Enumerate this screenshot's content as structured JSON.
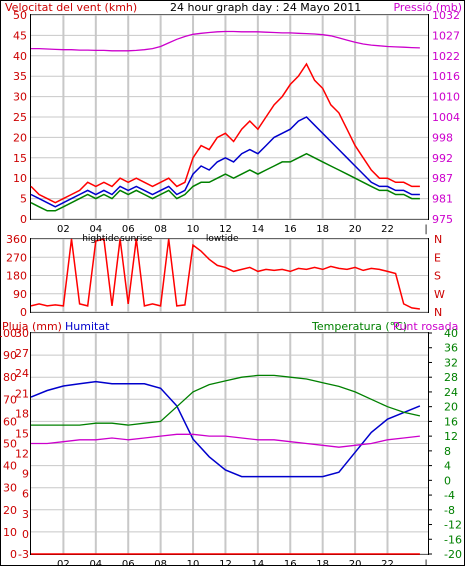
{
  "header": {
    "wind_label": "Velocitat del vent (kmh)",
    "title": "24 hour graph day : 24 Mayo 2011",
    "pressure_label": "Pressió (mb)"
  },
  "mid_header": {
    "rain_label": "Pluja (mm)",
    "humidity_label": "Humitat",
    "temp_label": "Temperatura (°C)",
    "dew_label": "Punt rosada"
  },
  "colors": {
    "wind_gust": "#ff0000",
    "wind_avg": "#008000",
    "wind_mid": "#0000cc",
    "pressure": "#cc00cc",
    "direction": "#ff0000",
    "rain": "#ff0000",
    "humidity": "#0000cc",
    "temperature": "#008000",
    "dew_point": "#cc00cc",
    "axis_left": "#cc0000",
    "axis_right_pressure": "#cc00cc",
    "axis_right_temp": "#008000",
    "grid": "#c8c8c8",
    "frame": "#000000"
  },
  "x_axis": {
    "hour_ticks": [
      "02",
      "04",
      "06",
      "08",
      "10",
      "12",
      "14",
      "16",
      "18",
      "20",
      "22",
      "|"
    ],
    "hour_values": [
      2,
      4,
      6,
      8,
      10,
      12,
      14,
      16,
      18,
      20,
      22,
      24
    ],
    "annotations": [
      {
        "text": "hightide",
        "hour": 4.3
      },
      {
        "text": "sunrise",
        "hour": 6.5
      },
      {
        "text": "lowtide",
        "hour": 11.8
      }
    ],
    "range": [
      0,
      24.5
    ]
  },
  "chart_data": [
    {
      "type": "line",
      "title": "Velocitat del vent (kmh) / Pressió (mb)",
      "xlabel": "",
      "ylabel": "Velocitat del vent (kmh)",
      "ylim": [
        0,
        50
      ],
      "y_ticks": [
        "0",
        "5",
        "10",
        "15",
        "20",
        "25",
        "30",
        "35",
        "40",
        "45",
        "50"
      ],
      "y2label": "Pressió (mb)",
      "y2lim": [
        975,
        1032
      ],
      "y2_ticks": [
        "975",
        "981",
        "987",
        "992",
        "998",
        "1004",
        "1010",
        "1016",
        "1022",
        "1027",
        "1032"
      ],
      "x_hours": [
        0,
        0.5,
        1,
        1.5,
        2,
        2.5,
        3,
        3.5,
        4,
        4.5,
        5,
        5.5,
        6,
        6.5,
        7,
        7.5,
        8,
        8.5,
        9,
        9.5,
        10,
        10.5,
        11,
        11.5,
        12,
        12.5,
        13,
        13.5,
        14,
        14.5,
        15,
        15.5,
        16,
        16.5,
        17,
        17.5,
        18,
        18.5,
        19,
        19.5,
        20,
        20.5,
        21,
        21.5,
        22,
        22.5,
        23,
        23.5,
        24
      ],
      "series": [
        {
          "name": "Velocitat del vent (kmh)",
          "color": "#ff0000",
          "values": [
            8,
            6,
            5,
            4,
            5,
            6,
            7,
            9,
            8,
            9,
            8,
            10,
            9,
            10,
            9,
            8,
            9,
            10,
            8,
            9,
            15,
            18,
            17,
            20,
            21,
            19,
            22,
            24,
            22,
            25,
            28,
            30,
            33,
            35,
            38,
            34,
            32,
            28,
            26,
            22,
            18,
            15,
            12,
            10,
            10,
            9,
            9,
            8,
            8
          ]
        },
        {
          "name": "",
          "color": "#0000cc",
          "values": [
            6,
            5,
            4,
            3,
            4,
            5,
            6,
            7,
            6,
            7,
            6,
            8,
            7,
            8,
            7,
            6,
            7,
            8,
            6,
            7,
            11,
            13,
            12,
            14,
            15,
            14,
            16,
            17,
            16,
            18,
            20,
            21,
            22,
            24,
            25,
            23,
            21,
            19,
            17,
            15,
            13,
            11,
            9,
            8,
            8,
            7,
            7,
            6,
            6
          ]
        },
        {
          "name": "",
          "color": "#008000",
          "values": [
            4,
            3,
            2,
            2,
            3,
            4,
            5,
            6,
            5,
            6,
            5,
            7,
            6,
            7,
            6,
            5,
            6,
            7,
            5,
            6,
            8,
            9,
            9,
            10,
            11,
            10,
            11,
            12,
            11,
            12,
            13,
            14,
            14,
            15,
            16,
            15,
            14,
            13,
            12,
            11,
            10,
            9,
            8,
            7,
            7,
            6,
            6,
            5,
            5
          ]
        },
        {
          "name": "Pressió (mb)",
          "color": "#cc00cc",
          "axis": "right",
          "values": [
            1022.6,
            1022.6,
            1022.5,
            1022.4,
            1022.3,
            1022.3,
            1022.2,
            1022.2,
            1022.1,
            1022.1,
            1022.0,
            1022.0,
            1022.0,
            1022.1,
            1022.3,
            1022.6,
            1023.2,
            1024.2,
            1025.2,
            1026.0,
            1026.6,
            1026.9,
            1027.1,
            1027.3,
            1027.4,
            1027.4,
            1027.3,
            1027.3,
            1027.3,
            1027.2,
            1027.1,
            1027.0,
            1027.0,
            1026.9,
            1026.8,
            1026.7,
            1026.5,
            1026.2,
            1025.6,
            1025.0,
            1024.4,
            1023.9,
            1023.6,
            1023.4,
            1023.2,
            1023.1,
            1023.0,
            1022.9,
            1022.8
          ]
        }
      ]
    },
    {
      "type": "line",
      "title": "",
      "xlabel": "",
      "ylabel": "",
      "ylim": [
        0,
        360
      ],
      "y_ticks": [
        "0",
        "90",
        "180",
        "270",
        "360"
      ],
      "y2_ticks": [
        "N",
        "W",
        "S",
        "E",
        "N"
      ],
      "x_hours": [
        0,
        0.5,
        1,
        1.5,
        2,
        2.5,
        3,
        3.5,
        4,
        4.5,
        5,
        5.5,
        6,
        6.5,
        7,
        7.5,
        8,
        8.5,
        9,
        9.5,
        10,
        10.5,
        11,
        11.5,
        12,
        12.5,
        13,
        13.5,
        14,
        14.5,
        15,
        15.5,
        16,
        16.5,
        17,
        17.5,
        18,
        18.5,
        19,
        19.5,
        20,
        20.5,
        21,
        21.5,
        22,
        22.5,
        23,
        23.5,
        24
      ],
      "series": [
        {
          "name": "",
          "color": "#ff0000",
          "values": [
            30,
            40,
            30,
            35,
            30,
            360,
            40,
            30,
            350,
            360,
            30,
            360,
            40,
            360,
            30,
            40,
            30,
            360,
            30,
            35,
            330,
            300,
            260,
            230,
            220,
            200,
            210,
            220,
            200,
            210,
            205,
            210,
            200,
            215,
            210,
            220,
            210,
            225,
            215,
            210,
            220,
            205,
            215,
            210,
            200,
            190,
            40,
            20,
            15
          ]
        }
      ]
    },
    {
      "type": "line",
      "title": "",
      "xlabel": "",
      "ylabel": "Pluja (mm)",
      "ylim": [
        0,
        100
      ],
      "y_ticks": [
        "0",
        "10",
        "20",
        "30",
        "40",
        "50",
        "60",
        "70",
        "80",
        "90",
        "100"
      ],
      "y_ticks_secondary": [
        "-3",
        "0",
        "3",
        "6",
        "9",
        "12",
        "15",
        "18",
        "21",
        "24",
        "27",
        "30"
      ],
      "y2label": "Temperatura (°C)",
      "y2lim": [
        -20,
        40
      ],
      "y2_ticks": [
        "-20",
        "-16",
        "-12",
        "-8",
        "-4",
        "0",
        "4",
        "8",
        "12",
        "16",
        "20",
        "24",
        "28",
        "32",
        "36",
        "40"
      ],
      "x_hours": [
        0,
        1,
        2,
        3,
        4,
        5,
        6,
        7,
        8,
        9,
        10,
        11,
        12,
        13,
        14,
        15,
        16,
        17,
        18,
        19,
        20,
        21,
        22,
        23,
        24
      ],
      "series": [
        {
          "name": "Pluja (mm)",
          "color": "#ff0000",
          "values": [
            0,
            0,
            0,
            0,
            0,
            0,
            0,
            0,
            0,
            0,
            0,
            0,
            0,
            0,
            0,
            0,
            0,
            0,
            0,
            0,
            0,
            0,
            0,
            0,
            0
          ]
        },
        {
          "name": "Humitat",
          "color": "#0000cc",
          "values": [
            71,
            74,
            76,
            77,
            78,
            77,
            77,
            77,
            75,
            67,
            52,
            44,
            38,
            35,
            35,
            35,
            35,
            35,
            35,
            37,
            46,
            55,
            61,
            64,
            67
          ]
        },
        {
          "name": "Temperatura (°C)",
          "color": "#008000",
          "axis": "right",
          "values": [
            15,
            15,
            15,
            15,
            15.5,
            15.5,
            15,
            15.5,
            16,
            20,
            24,
            26,
            27,
            28,
            28.5,
            28.5,
            28,
            27.5,
            26.5,
            25.5,
            24,
            22,
            20,
            18.5,
            17.5
          ]
        },
        {
          "name": "Punt rosada",
          "color": "#cc00cc",
          "axis": "right",
          "values": [
            10,
            10,
            10.5,
            11,
            11,
            11.5,
            11,
            11.5,
            12,
            12.5,
            12.5,
            12,
            12,
            11.5,
            11,
            11,
            10.5,
            10,
            9.5,
            9,
            9.5,
            10,
            11,
            11.5,
            12
          ]
        }
      ]
    }
  ]
}
